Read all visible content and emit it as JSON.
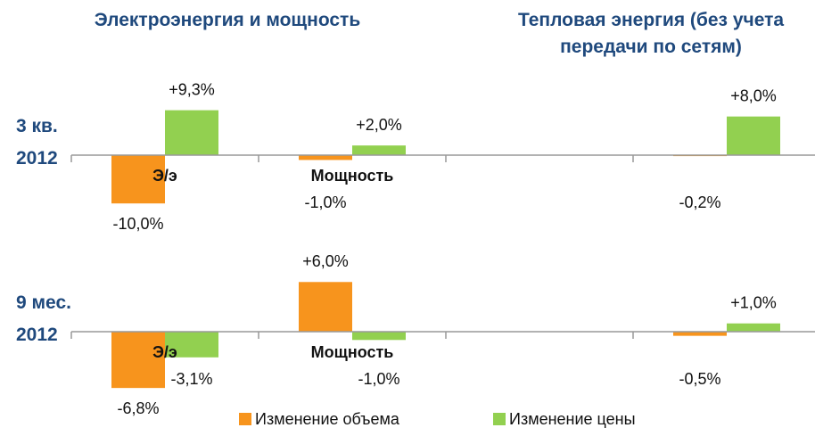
{
  "headers": [
    "Электроэнергия и мощность",
    "Тепловая энергия (без учета передачи по сетям)"
  ],
  "chart_data": [
    {
      "type": "bar",
      "title": "3 кв. 2012",
      "categories": [
        "Э/э",
        "Мощность",
        null,
        null
      ],
      "ylim": [
        -12,
        12
      ],
      "series": [
        {
          "name": "Изменение объема",
          "color": "#f7941d",
          "values": [
            -10.0,
            -1.0,
            null,
            -0.2
          ],
          "value_labels": [
            "-10,0%",
            "-1,0%",
            null,
            "-0,2%"
          ]
        },
        {
          "name": "Изменение цены",
          "color": "#92d050",
          "values": [
            9.3,
            2.0,
            null,
            8.0
          ],
          "value_labels": [
            "+9,3%",
            "+2,0%",
            null,
            "+8,0%"
          ]
        }
      ]
    },
    {
      "type": "bar",
      "title": "9 мес. 2012",
      "categories": [
        "Э/э",
        "Мощность",
        null,
        null
      ],
      "ylim": [
        -7,
        7
      ],
      "series": [
        {
          "name": "Изменение объема",
          "color": "#f7941d",
          "values": [
            -6.8,
            6.0,
            null,
            -0.5
          ],
          "value_labels": [
            "-6,8%",
            "+6,0%",
            null,
            "-0,5%"
          ]
        },
        {
          "name": "Изменение цены",
          "color": "#92d050",
          "values": [
            -3.1,
            -1.0,
            null,
            1.0
          ],
          "value_labels": [
            "-3,1%",
            "-1,0%",
            null,
            "+1,0%"
          ]
        }
      ]
    }
  ]
}
